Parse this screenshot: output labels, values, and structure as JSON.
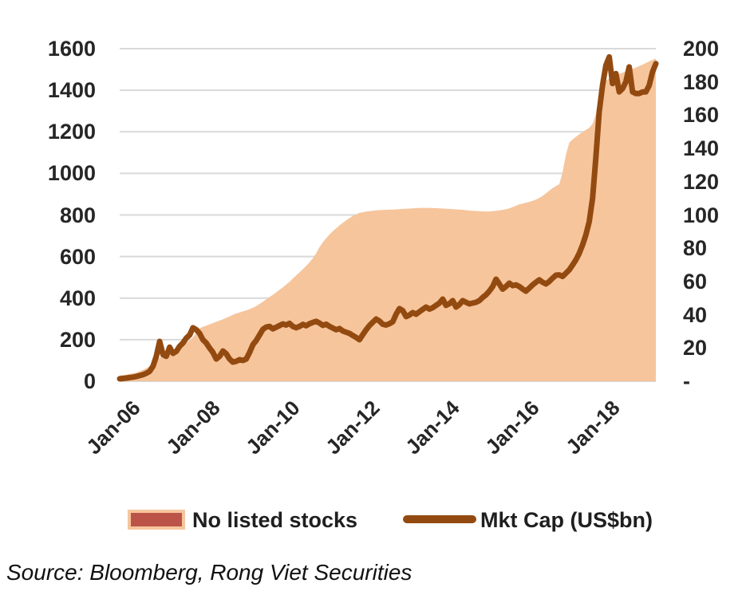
{
  "source": "Source: Bloomberg, Rong Viet Securities",
  "legend": {
    "area_label": "No listed stocks",
    "line_label": "Mkt Cap (US$bn)"
  },
  "colors": {
    "area_fill": "#f6c59c",
    "line": "#934a10",
    "legend_area_swatch_fill": "#bc5349",
    "legend_area_swatch_border": "#f6c59c",
    "grid": "#d9d9d9",
    "axis_text": "#262626"
  },
  "chart_data": {
    "type": "area",
    "subtype": "combo-area-line-dual-axis",
    "x_start": "Jan-06",
    "x_frequency": "monthly",
    "x_points": 162,
    "x_tick_labels": [
      "Jan-06",
      "Jan-08",
      "Jan-10",
      "Jan-12",
      "Jan-14",
      "Jan-16",
      "Jan-18"
    ],
    "x_tick_month_index": [
      0,
      24,
      48,
      72,
      96,
      120,
      144
    ],
    "left_axis": {
      "min": 0,
      "max": 1600,
      "step": 200,
      "tick_labels": [
        "1600",
        "1400",
        "1200",
        "1000",
        "800",
        "600",
        "400",
        "200",
        "0"
      ]
    },
    "right_axis": {
      "min": 0,
      "max": 200,
      "step": 20,
      "tick_labels": [
        "200",
        "180",
        "160",
        "140",
        "120",
        "100",
        "80",
        "60",
        "40",
        "20",
        "-"
      ]
    },
    "grid": true,
    "legend_position": "bottom",
    "series": [
      {
        "name": "No listed stocks",
        "type": "area",
        "axis": "left",
        "values": [
          28,
          30,
          32,
          35,
          38,
          42,
          48,
          55,
          62,
          72,
          84,
          98,
          113,
          123,
          132,
          141,
          150,
          158,
          166,
          175,
          185,
          197,
          212,
          232,
          255,
          262,
          268,
          274,
          280,
          286,
          292,
          298,
          305,
          312,
          320,
          326,
          331,
          336,
          341,
          347,
          354,
          362,
          372,
          383,
          394,
          405,
          416,
          428,
          440,
          452,
          465,
          479,
          494,
          509,
          524,
          539,
          555,
          572,
          592,
          616,
          645,
          668,
          688,
          706,
          722,
          736,
          750,
          762,
          774,
          785,
          795,
          803,
          810,
          813,
          816,
          818,
          820,
          822,
          823,
          824,
          825,
          826,
          826,
          827,
          828,
          829,
          830,
          831,
          832,
          833,
          834,
          834,
          834,
          834,
          833,
          833,
          832,
          831,
          830,
          829,
          828,
          827,
          826,
          825,
          823,
          821,
          820,
          819,
          818,
          817,
          817,
          817,
          818,
          820,
          822,
          825,
          828,
          832,
          838,
          844,
          851,
          855,
          859,
          863,
          868,
          874,
          882,
          892,
          904,
          917,
          929,
          939,
          948,
          1005,
          1090,
          1148,
          1163,
          1176,
          1188,
          1199,
          1209,
          1219,
          1238,
          1285,
          1365,
          1432,
          1446,
          1456,
          1464,
          1471,
          1478,
          1485,
          1491,
          1497,
          1503,
          1509,
          1516,
          1523,
          1531,
          1539,
          1546,
          1553
        ]
      },
      {
        "name": "Mkt Cap (US$bn)",
        "type": "line",
        "axis": "right",
        "values": [
          1.5,
          1.7,
          1.9,
          2.2,
          2.5,
          2.9,
          3.4,
          4,
          4.8,
          6,
          9,
          15,
          24,
          16,
          15,
          20.5,
          16.8,
          18,
          21,
          23,
          26,
          27.8,
          32.2,
          31,
          28.8,
          25,
          23,
          20,
          17.3,
          13.4,
          15,
          18.2,
          16.5,
          13.4,
          11.5,
          12,
          13,
          12.5,
          13.4,
          17.3,
          22,
          24.5,
          27.8,
          31.2,
          32.6,
          33,
          31.5,
          32.5,
          33.5,
          34.5,
          33.8,
          34.8,
          33,
          32.2,
          33,
          34.2,
          33.4,
          34.6,
          35.4,
          36,
          35,
          33.6,
          34.3,
          33,
          32,
          31,
          31.7,
          30.2,
          29.5,
          28.8,
          27.5,
          26.4,
          25,
          28,
          31,
          33.5,
          35.5,
          37.4,
          36.2,
          34.3,
          33.8,
          34.6,
          35.8,
          40.3,
          43.7,
          42.5,
          38.9,
          39.8,
          41.3,
          40.3,
          41.8,
          43.2,
          44.6,
          43.4,
          44.2,
          45.6,
          47,
          49.4,
          45.6,
          46.6,
          48.5,
          44.6,
          46.1,
          48.5,
          47.5,
          46.5,
          47,
          47.5,
          48.5,
          50.4,
          52,
          54.2,
          57,
          61.4,
          58.5,
          55.4,
          57,
          59,
          57.5,
          58,
          57,
          55.5,
          54.2,
          56,
          58,
          59.5,
          61,
          59.5,
          58.5,
          60,
          62,
          63.8,
          64,
          63,
          65,
          67,
          70,
          73,
          77,
          82,
          88,
          96,
          110,
          135,
          162,
          178,
          190,
          195,
          179,
          185,
          174,
          176,
          180,
          189,
          174,
          173,
          173,
          174,
          174,
          178,
          186,
          191
        ]
      }
    ]
  }
}
